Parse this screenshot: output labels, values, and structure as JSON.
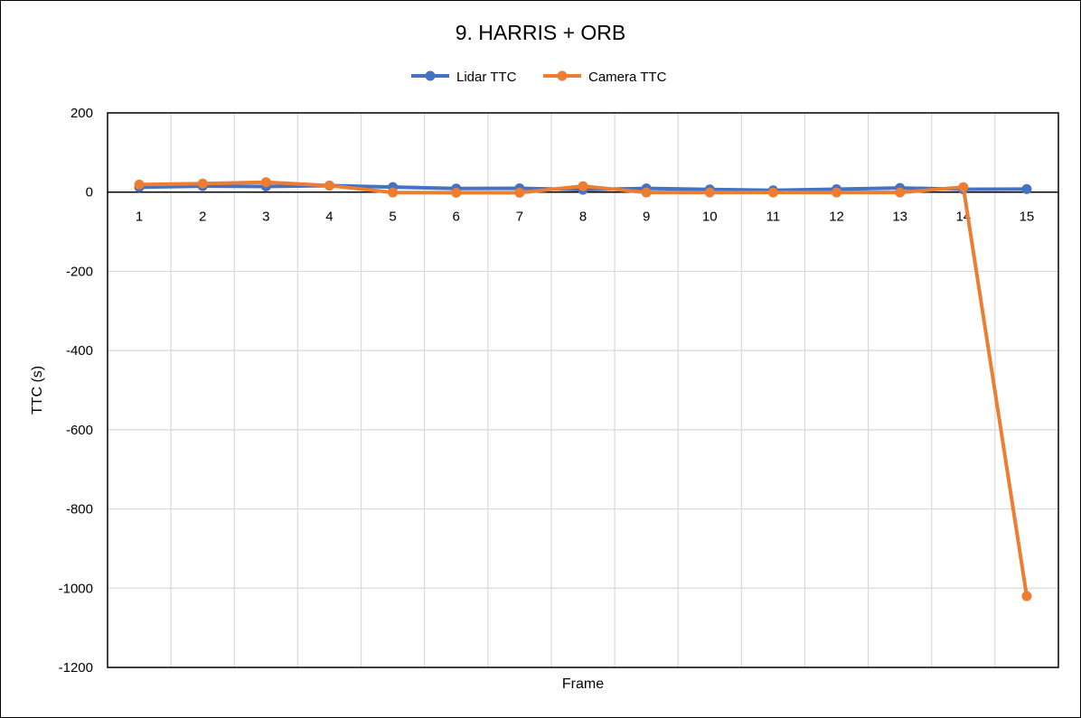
{
  "chart_data": {
    "type": "line",
    "title": "9. HARRIS + ORB",
    "xlabel": "Frame",
    "ylabel": "TTC (s)",
    "x": [
      1,
      2,
      3,
      4,
      5,
      6,
      7,
      8,
      9,
      10,
      11,
      12,
      13,
      14,
      15
    ],
    "ylim": [
      -1200,
      200
    ],
    "yticks": [
      200,
      0,
      -200,
      -400,
      -600,
      -800,
      -1000,
      -1200
    ],
    "grid": true,
    "legend_position": "top-center",
    "series": [
      {
        "name": "Lidar TTC",
        "color": "#4472C4",
        "values": [
          12.5,
          15.0,
          14.1,
          16.4,
          12.7,
          9.0,
          9.6,
          6.0,
          9.3,
          6.8,
          4.5,
          7.4,
          10.5,
          7.0,
          7.6
        ]
      },
      {
        "name": "Camera TTC",
        "color": "#ED7D31",
        "values": [
          19.0,
          21.5,
          25.0,
          16.5,
          -1.0,
          -1.5,
          -1.5,
          15.0,
          -1.0,
          -1.0,
          -1.0,
          -1.0,
          -1.0,
          12.5,
          -1020.0
        ]
      }
    ]
  }
}
